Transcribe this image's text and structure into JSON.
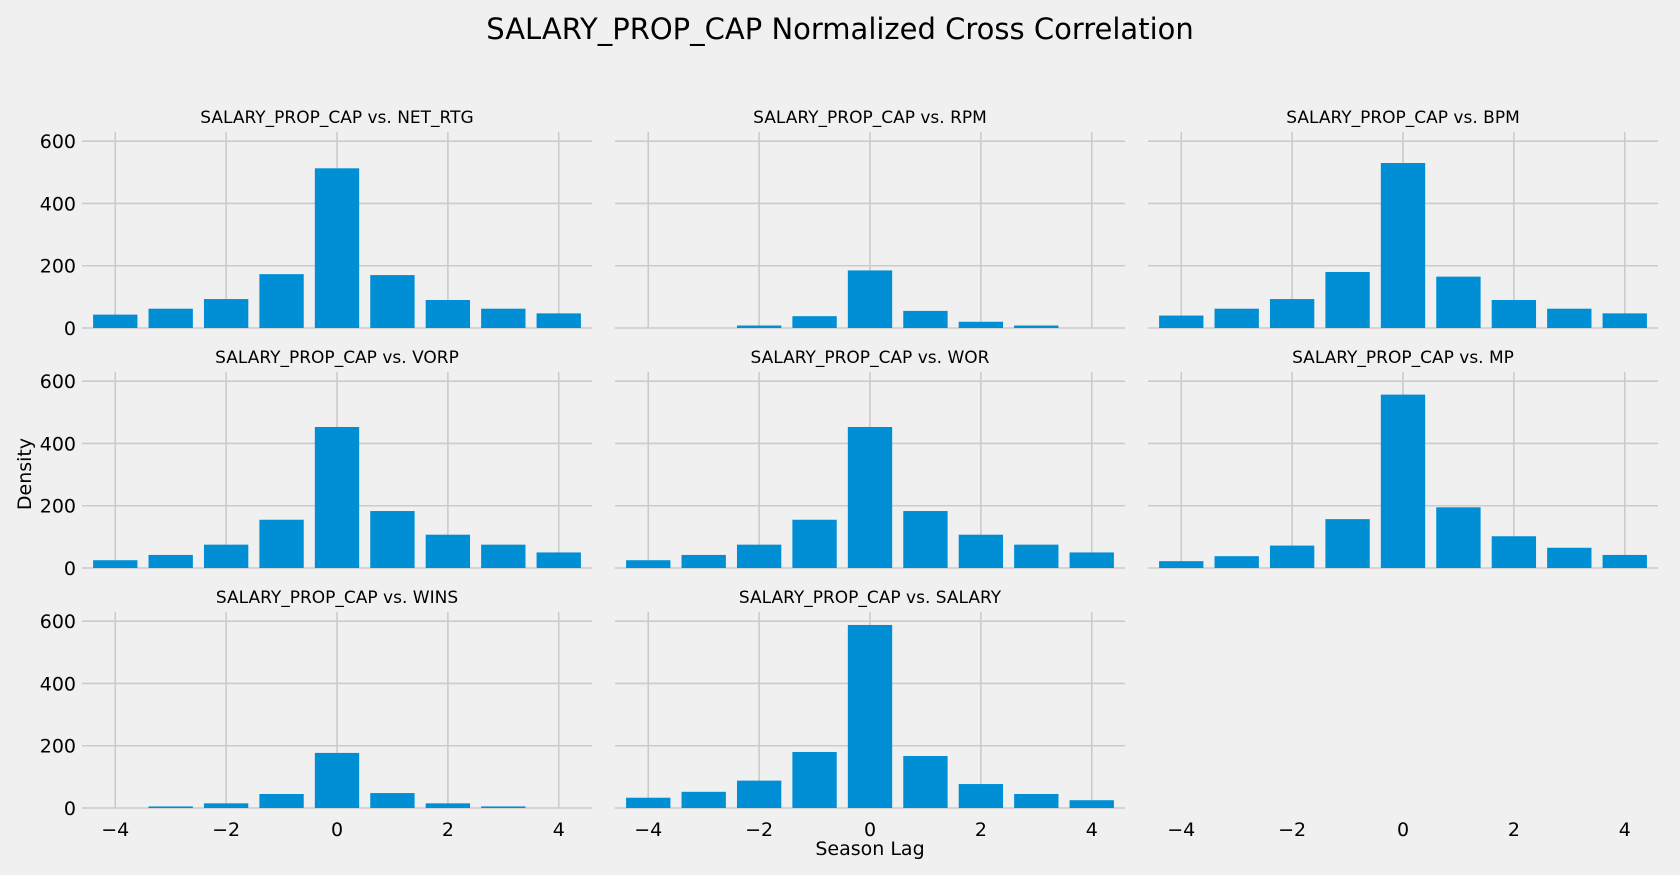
{
  "chart_data": {
    "type": "bar",
    "title": "SALARY_PROP_CAP Normalized Cross Correlation",
    "xlabel": "Season Lag",
    "ylabel": "Density",
    "categories": [
      -4,
      -3,
      -2,
      -1,
      0,
      1,
      2,
      3,
      4
    ],
    "xticks": [
      -4,
      -2,
      0,
      2,
      4
    ],
    "xtick_labels": [
      "−4",
      "−2",
      "0",
      "2",
      "4"
    ],
    "yticks": [
      0,
      200,
      400,
      600
    ],
    "ylim": [
      0,
      620
    ],
    "xlim": [
      -4.6,
      4.6
    ],
    "grid": true,
    "bar_color": "#008fd5",
    "background": "#f0f0f0",
    "grid_color": "#cbcbcb",
    "subplots": [
      {
        "title": "SALARY_PROP_CAP vs. NET_RTG",
        "values": [
          43,
          62,
          93,
          173,
          513,
          170,
          90,
          62,
          47
        ]
      },
      {
        "title": "SALARY_PROP_CAP vs. RPM",
        "values": [
          0,
          0,
          8,
          38,
          185,
          55,
          20,
          8,
          0
        ]
      },
      {
        "title": "SALARY_PROP_CAP vs. BPM",
        "values": [
          40,
          62,
          93,
          180,
          530,
          165,
          90,
          62,
          47
        ]
      },
      {
        "title": "SALARY_PROP_CAP vs. VORP",
        "values": [
          25,
          42,
          75,
          155,
          453,
          183,
          107,
          75,
          50
        ]
      },
      {
        "title": "SALARY_PROP_CAP vs. WOR",
        "values": [
          25,
          42,
          75,
          155,
          453,
          183,
          107,
          75,
          50
        ]
      },
      {
        "title": "SALARY_PROP_CAP vs. MP",
        "values": [
          22,
          38,
          72,
          157,
          557,
          195,
          102,
          65,
          42
        ]
      },
      {
        "title": "SALARY_PROP_CAP vs. WINS",
        "values": [
          0,
          5,
          15,
          45,
          177,
          48,
          15,
          5,
          0
        ]
      },
      {
        "title": "SALARY_PROP_CAP vs. SALARY",
        "values": [
          33,
          52,
          88,
          180,
          588,
          167,
          77,
          45,
          25
        ]
      }
    ]
  }
}
